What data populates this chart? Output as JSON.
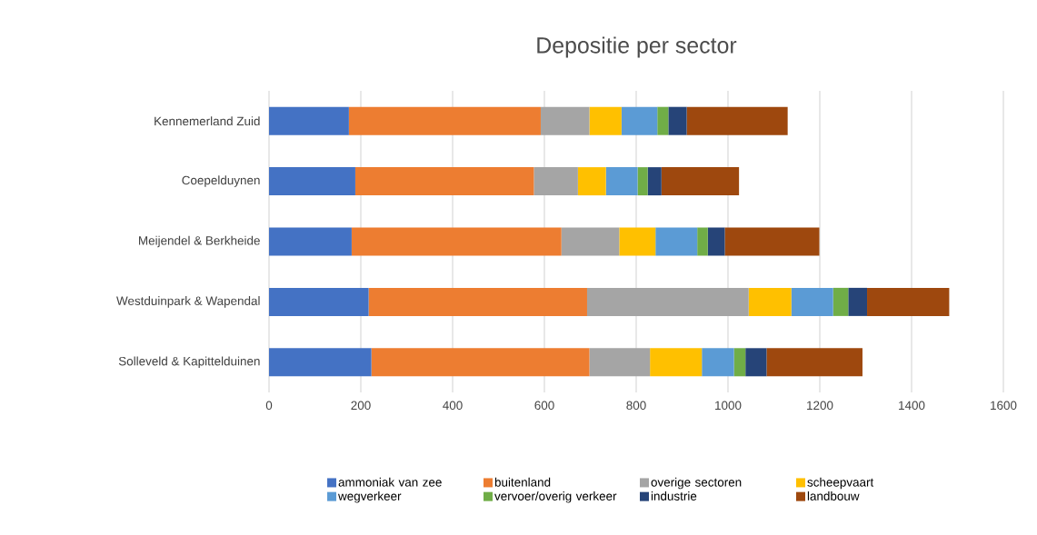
{
  "chart_data": {
    "type": "bar",
    "orientation": "horizontal",
    "stacked": true,
    "title": "Depositie per sector",
    "categories": [
      "Kennemerland Zuid",
      "Coepelduynen",
      "Meijendel & Berkheide",
      "Westduinpark & Wapendal",
      "Solleveld & Kapittelduinen"
    ],
    "series": [
      {
        "name": "ammoniak van zee",
        "color": "#4472c4",
        "values": [
          174,
          188,
          180,
          217,
          223
        ]
      },
      {
        "name": "buitenland",
        "color": "#ed7d31",
        "values": [
          418,
          389,
          457,
          476,
          475
        ]
      },
      {
        "name": "overige sectoren",
        "color": "#a5a5a5",
        "values": [
          106,
          96,
          126,
          352,
          132
        ]
      },
      {
        "name": "scheepvaart",
        "color": "#ffc000",
        "values": [
          70,
          61,
          79,
          93,
          113
        ]
      },
      {
        "name": "wegverkeer",
        "color": "#5b9bd5",
        "values": [
          78,
          69,
          91,
          91,
          70
        ]
      },
      {
        "name": "vervoer/overig verkeer",
        "color": "#70ad47",
        "values": [
          24,
          22,
          23,
          33,
          25
        ]
      },
      {
        "name": "industrie",
        "color": "#264478",
        "values": [
          40,
          30,
          37,
          41,
          46
        ]
      },
      {
        "name": "landbouw",
        "color": "#9e480e",
        "values": [
          220,
          169,
          206,
          179,
          209
        ]
      }
    ],
    "xlim": [
      0,
      1600
    ],
    "xticks": [
      0,
      200,
      400,
      600,
      800,
      1000,
      1200,
      1400,
      1600
    ],
    "grid": "x",
    "legend": "bottom"
  }
}
